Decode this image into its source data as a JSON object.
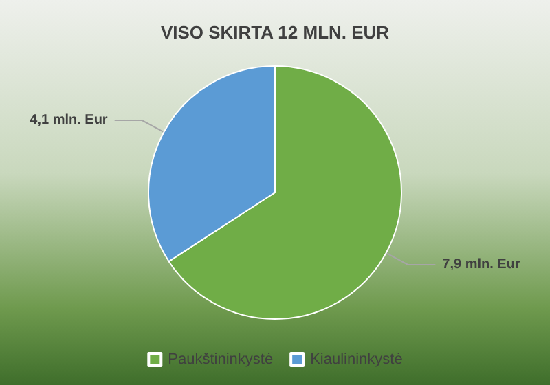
{
  "chart_data": {
    "type": "pie",
    "title": "VISO SKIRTA 12 MLN. EUR",
    "categories": [
      "Paukštininkystė",
      "Kiaulininkystė"
    ],
    "values": [
      7.9,
      4.1
    ],
    "colors": [
      "#70ad47",
      "#5b9bd5"
    ],
    "value_labels": [
      "7,9 mln. Eur",
      "4,1 mln. Eur"
    ],
    "legend": "bottom"
  }
}
